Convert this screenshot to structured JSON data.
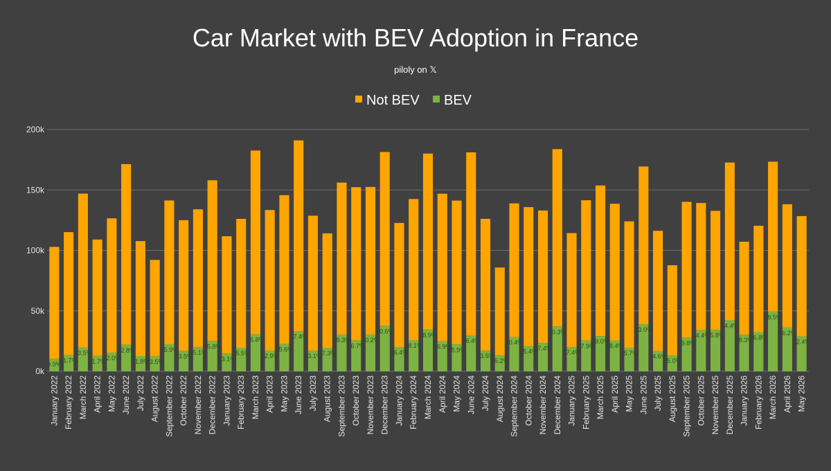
{
  "colors": {
    "background": "#404040",
    "not_bev": "#FFA500",
    "bev": "#7CB342",
    "grid": "#6E6E6E",
    "text": "#FFFFFF",
    "axis_text": "#E6E6E6",
    "label_text": "#2E4A1E"
  },
  "chart_data": {
    "type": "bar",
    "stacked": true,
    "title": "Car Market with BEV Adoption in France",
    "subtitle": "piloly on 𝕏",
    "ylim": [
      0,
      200000
    ],
    "y_ticks": [
      {
        "value": 0,
        "label": "0k"
      },
      {
        "value": 50000,
        "label": "50k"
      },
      {
        "value": 100000,
        "label": "100k"
      },
      {
        "value": 150000,
        "label": "150k"
      },
      {
        "value": 200000,
        "label": "200k"
      }
    ],
    "grid": true,
    "legend_position": "top-center",
    "categories": [
      "January 2022",
      "February 2022",
      "March 2022",
      "April 2022",
      "May 2022",
      "June 2022",
      "July 2022",
      "August 2022",
      "September 2022",
      "October 2022",
      "November 2022",
      "December 2022",
      "January 2023",
      "February 2023",
      "March 2023",
      "April 2023",
      "May 2023",
      "June 2023",
      "July 2023",
      "August 2023",
      "September 2023",
      "October 2023",
      "November 2023",
      "December 2023",
      "January 2024",
      "February 2024",
      "March 2024",
      "April 2024",
      "May 2024",
      "June 2024",
      "July 2024",
      "August 2024",
      "September 2024",
      "October 2024",
      "November 2024",
      "December 2024",
      "January 2025",
      "February 2025",
      "March 2025",
      "April 2025",
      "May 2025",
      "June 2025",
      "July 2025",
      "August 2025",
      "September 2025",
      "October 2025",
      "November 2025",
      "December 2025",
      "January 2026",
      "February 2026",
      "March 2026",
      "April 2026",
      "May 2026"
    ],
    "series": [
      {
        "name": "Not BEV",
        "color": "#FFA500",
        "values": [
          92700,
          101600,
          127200,
          96300,
          111100,
          149500,
          95100,
          79700,
          118900,
          108000,
          113900,
          133000,
          97000,
          106600,
          152000,
          116200,
          123200,
          157800,
          111600,
          94600,
          125700,
          126700,
          122100,
          143800,
          102700,
          116700,
          145600,
          122100,
          119000,
          151300,
          109000,
          72700,
          110600,
          114900,
          109600,
          146700,
          94300,
          116200,
          124600,
          113100,
          104500,
          130500,
          99300,
          74500,
          112300,
          105200,
          98400,
          130500,
          76900,
          88000,
          124000,
          102000,
          99600
        ]
      },
      {
        "name": "BEV",
        "color": "#7CB342",
        "values": [
          10200,
          13500,
          19800,
          12700,
          15400,
          21900,
          12600,
          12400,
          22400,
          17000,
          20100,
          25000,
          14700,
          19500,
          30600,
          17200,
          22500,
          33200,
          17100,
          19500,
          30400,
          25600,
          30400,
          37600,
          20000,
          25800,
          34500,
          24800,
          22200,
          29800,
          17100,
          13100,
          28300,
          20900,
          23400,
          37100,
          20000,
          25300,
          29100,
          25500,
          19500,
          38900,
          16900,
          13200,
          27900,
          34000,
          34300,
          42200,
          30300,
          32400,
          49400,
          36200,
          28800
        ]
      }
    ],
    "bev_share_labels": [
      "9.9%",
      "11.7%",
      "13.5%",
      "11.7%",
      "12.0%",
      "12.8%",
      "11.8%",
      "13.5%",
      "15.9%",
      "13.5%",
      "15.1%",
      "15.8%",
      "13.1%",
      "15.5%",
      "16.8%",
      "12.9%",
      "15.6%",
      "17.4%",
      "13.1%",
      "17.3%",
      "19.3%",
      "16.7%",
      "20.2%",
      "20.6%",
      "16.4%",
      "18.1%",
      "18.9%",
      "16.9%",
      "15.9%",
      "16.4%",
      "13.5%",
      "15.2%",
      "20.4%",
      "15.4%",
      "17.4%",
      "20.3%",
      "17.4%",
      "17.9%",
      "19.0%",
      "18.4%",
      "15.7%",
      "23.0%",
      "14.6%",
      "15.0%",
      "19.8%",
      "24.4%",
      "25.8%",
      "24.4%",
      "28.3%",
      "26.8%",
      "28.5%",
      "26.2%",
      "22.4%"
    ]
  }
}
